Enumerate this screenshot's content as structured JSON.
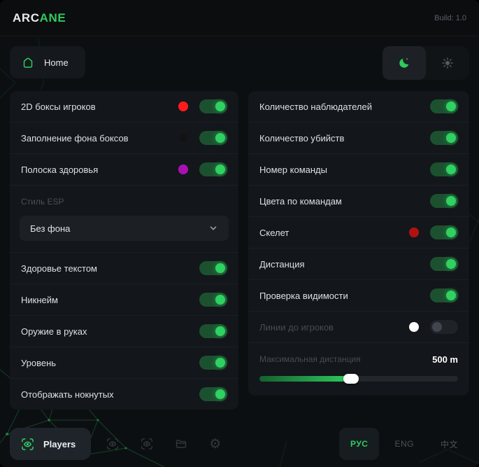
{
  "app": {
    "brand_prefix": "ARC",
    "brand_suffix": "ANE",
    "build": "Build: 1.0"
  },
  "nav": {
    "home_label": "Home"
  },
  "panels": {
    "left": {
      "rows": [
        {
          "type": "toggle",
          "label": "2D боксы игроков",
          "color": "#ff1a1a",
          "on": true
        },
        {
          "type": "toggle",
          "label": "Заполнение фона боксов",
          "color": "#101214",
          "on": true
        },
        {
          "type": "toggle",
          "label": "Полоска здоровья",
          "color": "#a90fb4",
          "on": true
        },
        {
          "type": "select",
          "label": "Стиль ESP",
          "value": "Без фона"
        },
        {
          "type": "toggle",
          "label": "Здоровье текстом",
          "on": true
        },
        {
          "type": "toggle",
          "label": "Никнейм",
          "on": true
        },
        {
          "type": "toggle",
          "label": "Оружие в руках",
          "on": true
        },
        {
          "type": "toggle",
          "label": "Уровень",
          "on": true
        },
        {
          "type": "toggle",
          "label": "Отображать нокнутых",
          "on": true
        }
      ]
    },
    "right": {
      "rows": [
        {
          "type": "toggle",
          "label": "Количество наблюдателей",
          "on": true
        },
        {
          "type": "toggle",
          "label": "Количество убийств",
          "on": true
        },
        {
          "type": "toggle",
          "label": "Номер команды",
          "on": true
        },
        {
          "type": "toggle",
          "label": "Цвета по командам",
          "on": true
        },
        {
          "type": "toggle",
          "label": "Скелет",
          "color": "#b01010",
          "on": true
        },
        {
          "type": "toggle",
          "label": "Дистанция",
          "on": true
        },
        {
          "type": "toggle",
          "label": "Проверка видимости",
          "on": true
        },
        {
          "type": "toggle",
          "label": "Линии до игроков",
          "color": "#ffffff",
          "on": false,
          "dimmed": true
        },
        {
          "type": "slider",
          "label": "Максимальная дистанция",
          "value": "500 m",
          "percent": 46,
          "dimmed": true
        }
      ]
    }
  },
  "footer": {
    "players_label": "Players",
    "toolbar_icons": [
      "aim-eye-icon",
      "aim-eye-icon",
      "folder-icon",
      "gear-icon"
    ],
    "languages": [
      {
        "label": "РУС",
        "active": true
      },
      {
        "label": "ENG",
        "active": false
      },
      {
        "label": "中文",
        "active": false
      }
    ]
  },
  "colors": {
    "accent": "#2ecc5e",
    "toggle_track_on": "#1c5130",
    "toggle_knob_on": "#2fd162",
    "panel_bg": "#13161a",
    "page_bg": "#0c0f11"
  }
}
